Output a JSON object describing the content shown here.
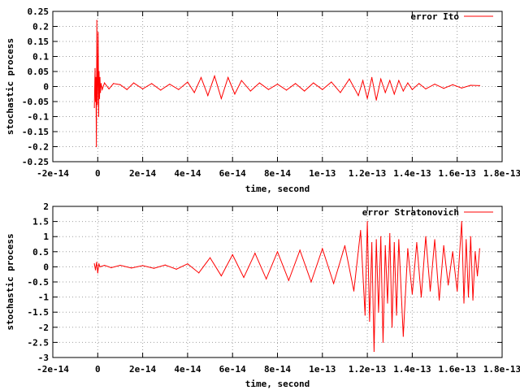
{
  "chart_data": [
    {
      "type": "line",
      "xlabel": "time, second",
      "ylabel": "stochastic process",
      "xlim": [
        -2e-14,
        1.8e-13
      ],
      "ylim": [
        -0.25,
        0.25
      ],
      "xticks": [
        -2e-14,
        0,
        2e-14,
        4e-14,
        6e-14,
        8e-14,
        1e-13,
        1.2e-13,
        1.4e-13,
        1.6e-13,
        1.8e-13
      ],
      "xtick_labels": [
        "-2e-14",
        "0",
        "2e-14",
        "4e-14",
        "6e-14",
        "8e-14",
        "1e-13",
        "1.2e-13",
        "1.4e-13",
        "1.6e-13",
        "1.8e-13"
      ],
      "yticks": [
        -0.25,
        -0.2,
        -0.15,
        -0.1,
        -0.05,
        0,
        0.05,
        0.1,
        0.15,
        0.2,
        0.25
      ],
      "ytick_labels": [
        "-0.25",
        "-0.2",
        "-0.15",
        "-0.1",
        "-0.05",
        "0",
        "0.05",
        "0.1",
        "0.15",
        "0.2",
        "0.25"
      ],
      "grid": true,
      "legend_position": "top-right",
      "series": [
        {
          "name": "error Ito",
          "color": "#ff0000",
          "x": [
            -1.5e-15,
            -1.2e-15,
            -1e-15,
            -8e-16,
            -6e-16,
            -4e-16,
            -2e-16,
            0,
            2e-16,
            4e-16,
            6e-16,
            8e-16,
            1e-15,
            1.2e-15,
            1.5e-15,
            2e-15,
            3e-15,
            5e-15,
            7e-15,
            1e-14,
            1.3e-14,
            1.6e-14,
            2e-14,
            2.4e-14,
            2.8e-14,
            3.2e-14,
            3.6e-14,
            4e-14,
            4.3e-14,
            4.6e-14,
            4.9e-14,
            5.2e-14,
            5.5e-14,
            5.8e-14,
            6.1e-14,
            6.4e-14,
            6.8e-14,
            7.2e-14,
            7.6e-14,
            8e-14,
            8.4e-14,
            8.8e-14,
            9.2e-14,
            9.6e-14,
            1e-13,
            1.04e-13,
            1.08e-13,
            1.12e-13,
            1.16e-13,
            1.18e-13,
            1.2e-13,
            1.22e-13,
            1.24e-13,
            1.26e-13,
            1.28e-13,
            1.3e-13,
            1.32e-13,
            1.34e-13,
            1.36e-13,
            1.38e-13,
            1.4e-13,
            1.43e-13,
            1.46e-13,
            1.5e-13,
            1.54e-13,
            1.58e-13,
            1.62e-13,
            1.66e-13,
            1.7e-13
          ],
          "values": [
            -0.07,
            0.06,
            -0.05,
            0.03,
            -0.2,
            0.22,
            -0.06,
            0.02,
            0.18,
            -0.1,
            0.05,
            -0.04,
            0.03,
            -0.02,
            0.01,
            -0.01,
            0.012,
            -0.008,
            0.01,
            0.006,
            -0.01,
            0.012,
            -0.008,
            0.01,
            -0.012,
            0.008,
            -0.01,
            0.015,
            -0.02,
            0.03,
            -0.03,
            0.035,
            -0.04,
            0.03,
            -0.025,
            0.02,
            -0.015,
            0.012,
            -0.01,
            0.008,
            -0.012,
            0.01,
            -0.015,
            0.012,
            -0.01,
            0.015,
            -0.02,
            0.025,
            -0.03,
            0.02,
            -0.04,
            0.03,
            -0.045,
            0.025,
            -0.02,
            0.02,
            -0.025,
            0.02,
            -0.015,
            0.012,
            -0.01,
            0.01,
            -0.008,
            0.008,
            -0.006,
            0.006,
            -0.005,
            0.004,
            0.003
          ]
        }
      ]
    },
    {
      "type": "line",
      "xlabel": "time, second",
      "ylabel": "stochastic process",
      "xlim": [
        -2e-14,
        1.8e-13
      ],
      "ylim": [
        -3,
        2
      ],
      "xticks": [
        -2e-14,
        0,
        2e-14,
        4e-14,
        6e-14,
        8e-14,
        1e-13,
        1.2e-13,
        1.4e-13,
        1.6e-13,
        1.8e-13
      ],
      "xtick_labels": [
        "-2e-14",
        "0",
        "2e-14",
        "4e-14",
        "6e-14",
        "8e-14",
        "1e-13",
        "1.2e-13",
        "1.4e-13",
        "1.6e-13",
        "1.8e-13"
      ],
      "yticks": [
        -3,
        -2.5,
        -2,
        -1.5,
        -1,
        -0.5,
        0,
        0.5,
        1,
        1.5,
        2
      ],
      "ytick_labels": [
        "-3",
        "-2.5",
        "-2",
        "-1.5",
        "-1",
        "-0.5",
        "0",
        "0.5",
        "1",
        "1.5",
        "2"
      ],
      "grid": true,
      "legend_position": "top-right",
      "series": [
        {
          "name": "error Stratonovich",
          "color": "#ff0000",
          "x": [
            -1.5e-15,
            -1e-15,
            -5e-16,
            0,
            5e-16,
            1e-15,
            3e-15,
            6e-15,
            1e-14,
            1.5e-14,
            2e-14,
            2.5e-14,
            3e-14,
            3.5e-14,
            4e-14,
            4.5e-14,
            5e-14,
            5.5e-14,
            6e-14,
            6.5e-14,
            7e-14,
            7.5e-14,
            8e-14,
            8.5e-14,
            9e-14,
            9.5e-14,
            1e-13,
            1.05e-13,
            1.1e-13,
            1.14e-13,
            1.17e-13,
            1.19e-13,
            1.2e-13,
            1.21e-13,
            1.22e-13,
            1.23e-13,
            1.24e-13,
            1.25e-13,
            1.26e-13,
            1.27e-13,
            1.28e-13,
            1.29e-13,
            1.3e-13,
            1.31e-13,
            1.32e-13,
            1.33e-13,
            1.34e-13,
            1.36e-13,
            1.38e-13,
            1.4e-13,
            1.42e-13,
            1.44e-13,
            1.46e-13,
            1.48e-13,
            1.5e-13,
            1.52e-13,
            1.54e-13,
            1.56e-13,
            1.58e-13,
            1.6e-13,
            1.62e-13,
            1.63e-13,
            1.64e-13,
            1.65e-13,
            1.66e-13,
            1.67e-13,
            1.68e-13,
            1.69e-13,
            1.7e-13
          ],
          "values": [
            0.1,
            -0.1,
            0.15,
            -0.2,
            0.1,
            0,
            0.05,
            -0.03,
            0.05,
            -0.04,
            0.04,
            -0.05,
            0.06,
            -0.08,
            0.1,
            -0.2,
            0.3,
            -0.3,
            0.4,
            -0.35,
            0.45,
            -0.4,
            0.5,
            -0.45,
            0.55,
            -0.5,
            0.6,
            -0.55,
            0.7,
            -0.8,
            1.2,
            -1.6,
            1.5,
            -1.8,
            0.8,
            -2.8,
            0.9,
            -1.5,
            1.0,
            -2.5,
            0.7,
            -1.2,
            1.1,
            -2.0,
            0.8,
            -1.6,
            0.9,
            -2.3,
            0.6,
            -0.9,
            0.8,
            -1.0,
            1.0,
            -0.8,
            0.9,
            -1.1,
            0.7,
            -0.6,
            0.5,
            -0.8,
            1.5,
            -1.2,
            0.9,
            -1.0,
            1.0,
            -1.1,
            0.5,
            -0.3,
            0.6
          ]
        }
      ]
    }
  ]
}
